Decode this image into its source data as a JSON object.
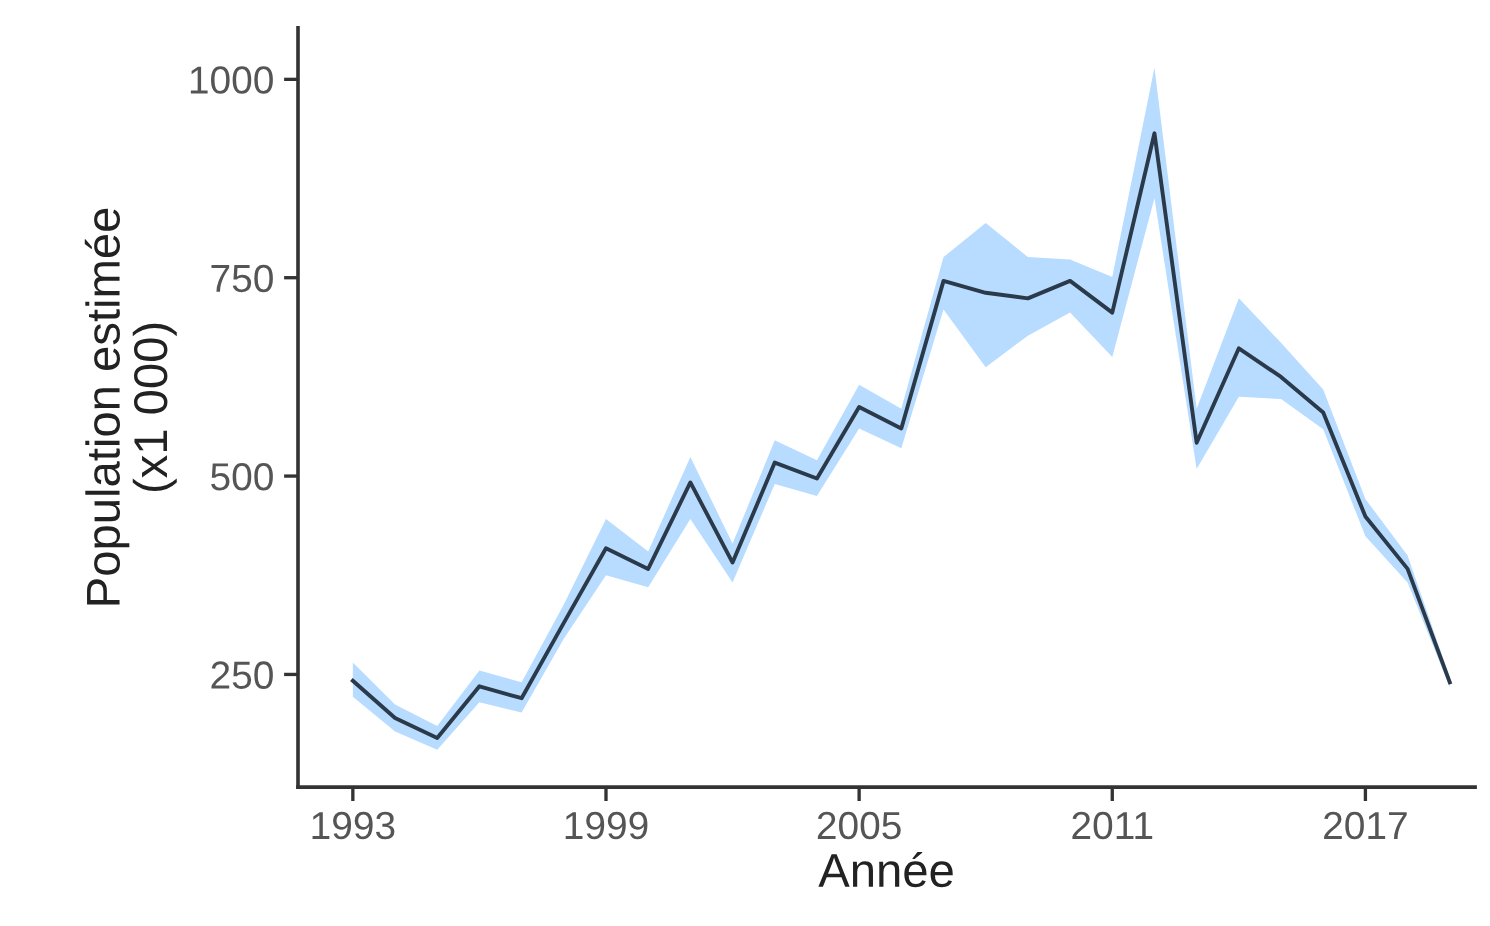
{
  "chart_data": {
    "type": "line",
    "xlabel": "Année",
    "ylabel": "Population estimée\n(x1 000)",
    "x": [
      1993,
      1994,
      1995,
      1996,
      1997,
      1998,
      1999,
      2000,
      2001,
      2002,
      2003,
      2004,
      2005,
      2006,
      2007,
      2008,
      2009,
      2010,
      2011,
      2012,
      2013,
      2014,
      2015,
      2016,
      2017,
      2018,
      2019
    ],
    "series": [
      {
        "color": "#2b3a4a",
        "values": [
          242,
          195,
          170,
          235,
          220,
          315,
          409,
          383,
          492,
          391,
          517,
          497,
          587,
          560,
          746,
          731,
          724,
          746,
          706,
          932,
          542,
          661,
          625,
          580,
          449,
          383,
          240
        ],
        "upper": [
          265,
          212,
          185,
          255,
          240,
          338,
          446,
          405,
          524,
          415,
          545,
          520,
          615,
          585,
          776,
          819,
          776,
          773,
          751,
          1015,
          585,
          724,
          668,
          609,
          471,
          400,
          246
        ],
        "lower": [
          222,
          178,
          155,
          215,
          202,
          295,
          375,
          360,
          446,
          366,
          490,
          475,
          560,
          535,
          710,
          637,
          677,
          706,
          650,
          850,
          509,
          600,
          597,
          559,
          424,
          366,
          234
        ]
      }
    ],
    "xlim": [
      1991.7,
      2019.6
    ],
    "ylim": [
      108,
      1065
    ],
    "xticks": [
      1993,
      1999,
      2005,
      2011,
      2017
    ],
    "yticks": [
      250,
      500,
      750,
      1000
    ],
    "grid": false,
    "legend": false,
    "marker": "none",
    "line_style": "solid"
  }
}
